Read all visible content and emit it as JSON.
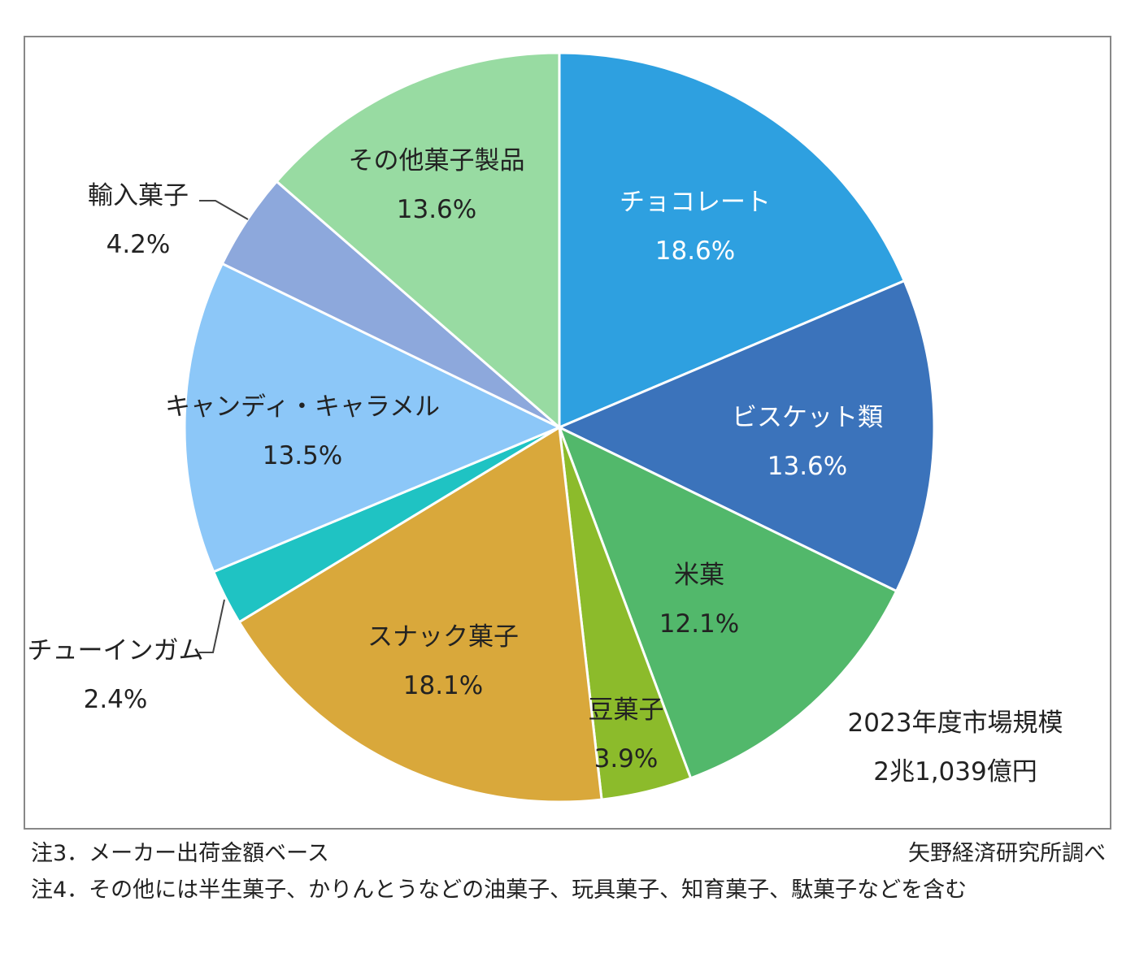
{
  "chart_data": {
    "type": "pie",
    "start_angle": "12 o'clock",
    "direction": "clockwise",
    "unit": "%",
    "slices": [
      {
        "label": "チョコレート",
        "value": 18.6,
        "value_label": "18.6%",
        "color": "#2ea0e0"
      },
      {
        "label": "ビスケット類",
        "value": 13.6,
        "value_label": "13.6%",
        "color": "#3b73bb"
      },
      {
        "label": "米菓",
        "value": 12.1,
        "value_label": "12.1%",
        "color": "#52b86b"
      },
      {
        "label": "豆菓子",
        "value": 3.9,
        "value_label": "3.9%",
        "color": "#8cbb2b"
      },
      {
        "label": "スナック菓子",
        "value": 18.1,
        "value_label": "18.1%",
        "color": "#d9a83b"
      },
      {
        "label": "チューインガム",
        "value": 2.4,
        "value_label": "2.4%",
        "color": "#1fc3c3"
      },
      {
        "label": "キャンディ・キャラメル",
        "value": 13.5,
        "value_label": "13.5%",
        "color": "#8cc7f8"
      },
      {
        "label": "輸入菓子",
        "value": 4.2,
        "value_label": "4.2%",
        "color": "#8da8dc"
      },
      {
        "label": "その他菓子製品",
        "value": 13.6,
        "value_label": "13.6%",
        "color": "#98dba2"
      }
    ],
    "annotation": {
      "line1": "2023年度市場規模",
      "line2": "2兆1,039億円"
    }
  },
  "notes": {
    "note3": "注3．メーカー出荷金額ベース",
    "note4": "注4．その他には半生菓子、かりんとうなどの油菓子、玩具菓子、知育菓子、駄菓子などを含む",
    "source": "矢野経済研究所調べ"
  }
}
